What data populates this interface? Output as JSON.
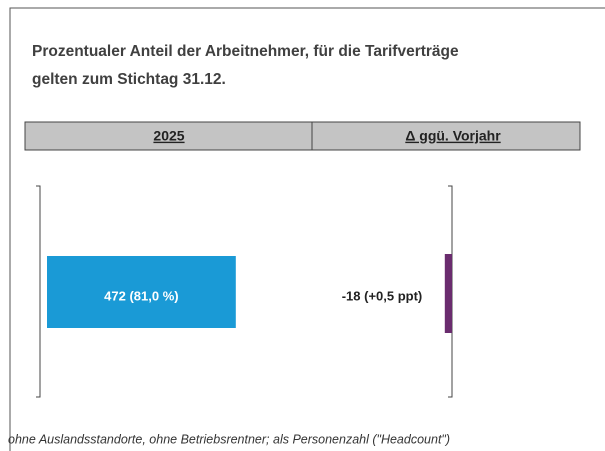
{
  "chart_data": {
    "type": "bar",
    "title": [
      "Prozentualer Anteil der Arbeitnehmer, für die Tarifverträge",
      "gelten zum Stichtag 31.12."
    ],
    "columns": [
      "2025",
      "Δ ggü. Vorjahr"
    ],
    "values": [
      472
    ],
    "value_labels": [
      "472 (81,0 %)"
    ],
    "color": "#1a9ad6",
    "delta": {
      "values": [
        -18
      ],
      "value_labels": [
        "-18 (+0,5 ppt)"
      ],
      "color": "#6a2c6e"
    },
    "footnote": "ohne Auslandsstandorte, ohne Betriebsrentner; als Personenzahl (\"Headcount\")"
  }
}
